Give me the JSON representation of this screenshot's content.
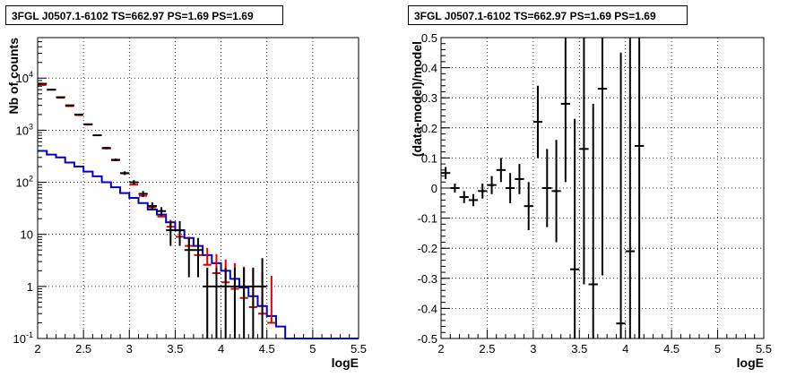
{
  "panels": [
    {
      "title": "3FGL J0507.1-6102 TS=662.97 PS=1.69 PS=1.69"
    },
    {
      "title": "3FGL J0507.1-6102 TS=662.97 PS=1.69 PS=1.69"
    }
  ],
  "colors": {
    "data": "#000000",
    "model_points": "#e00000",
    "model_line": "#0000cc",
    "grid": "#000000"
  },
  "chart_data": [
    {
      "type": "line",
      "title": "3FGL J0507.1-6102 TS=662.97 PS=1.69 PS=1.69",
      "xlabel": "logE",
      "ylabel": "Nb of counts",
      "xlim": [
        2,
        5.5
      ],
      "ylim": [
        0.1,
        60000
      ],
      "yscale": "log",
      "grid": true,
      "x_ticks": [
        "2",
        "2.5",
        "3",
        "3.5",
        "4",
        "4.5",
        "5",
        "5.5"
      ],
      "y_ticks": [
        "10^-1",
        "1",
        "10",
        "10^2",
        "10^3",
        "10^4"
      ],
      "bin_width": 0.1,
      "series": [
        {
          "kind": "data",
          "x": [
            2.05,
            2.15,
            2.25,
            2.35,
            2.45,
            2.55,
            2.65,
            2.75,
            2.85,
            2.95,
            3.05,
            3.15,
            3.25,
            3.35,
            3.45,
            3.55,
            3.65,
            3.75,
            3.85,
            3.95,
            4.05,
            4.15,
            4.25,
            4.35,
            4.45
          ],
          "y": [
            7800,
            6000,
            4300,
            3000,
            2000,
            1300,
            800,
            450,
            270,
            150,
            100,
            60,
            35,
            28,
            12,
            12,
            5,
            5,
            1,
            1,
            1,
            1,
            1,
            1,
            1
          ],
          "yerr_low": [
            100,
            80,
            70,
            60,
            45,
            36,
            28,
            21,
            16,
            12,
            10,
            8,
            6,
            5.3,
            6,
            6,
            3.5,
            3.5,
            0.97,
            0.97,
            0.97,
            0.97,
            0.97,
            0.97,
            0.97
          ],
          "yerr_high": [
            100,
            80,
            70,
            60,
            45,
            36,
            28,
            21,
            16,
            12,
            10,
            8,
            6,
            5.3,
            6,
            6,
            3.5,
            3.5,
            1.3,
            1.3,
            1.3,
            1.3,
            1.3,
            1.3,
            2.5
          ]
        },
        {
          "kind": "model",
          "x": [
            2.05,
            2.15,
            2.25,
            2.35,
            2.45,
            2.55,
            2.65,
            2.75,
            2.85,
            2.95,
            3.05,
            3.15,
            3.25,
            3.35,
            3.45,
            3.55,
            3.65,
            3.75,
            3.85,
            3.95,
            4.05,
            4.15,
            4.25,
            4.35,
            4.45,
            4.55
          ],
          "y": [
            7400,
            6000,
            4200,
            2900,
            1950,
            1280,
            800,
            460,
            265,
            148,
            90,
            55,
            33,
            22,
            14,
            9,
            6,
            4,
            2.6,
            1.8,
            1.2,
            0.9,
            0.6,
            0.4,
            0.3,
            0.2
          ],
          "err_high": [
            7500,
            6050,
            4250,
            2950,
            1980,
            1300,
            820,
            470,
            275,
            152,
            95,
            60,
            38,
            26,
            19,
            13,
            9,
            7,
            5.5,
            4.2,
            3.3,
            2.8,
            2.4,
            2.1,
            1.9,
            1.6
          ]
        },
        {
          "kind": "background",
          "bin_edges": [
            2,
            2.1,
            2.2,
            2.3,
            2.4,
            2.5,
            2.6,
            2.7,
            2.8,
            2.9,
            3.0,
            3.1,
            3.2,
            3.3,
            3.4,
            3.5,
            3.6,
            3.7,
            3.8,
            3.9,
            4.0,
            4.1,
            4.2,
            4.3,
            4.4,
            4.5,
            4.6,
            4.7,
            5.5
          ],
          "y": [
            400,
            340,
            300,
            240,
            200,
            160,
            130,
            100,
            80,
            62,
            50,
            40,
            30,
            24,
            17,
            12,
            8.5,
            6,
            4,
            2.8,
            2,
            1.4,
            0.95,
            0.65,
            0.42,
            0.27,
            0.17,
            0.1
          ]
        }
      ]
    },
    {
      "type": "scatter",
      "title": "3FGL J0507.1-6102 TS=662.97 PS=1.69 PS=1.69",
      "xlabel": "logE",
      "ylabel": "(data-model)/model",
      "xlim": [
        2,
        5.5
      ],
      "ylim": [
        -0.5,
        0.5
      ],
      "grid": true,
      "x_ticks": [
        "2",
        "2.5",
        "3",
        "3.5",
        "4",
        "4.5",
        "5",
        "5.5"
      ],
      "y_ticks": [
        "-0.5",
        "-0.4",
        "-0.3",
        "-0.2",
        "-0.1",
        "0",
        "0.1",
        "0.2",
        "0.3",
        "0.4",
        "0.5"
      ],
      "bin_width": 0.1,
      "series": [
        {
          "kind": "residuals",
          "x": [
            2.05,
            2.15,
            2.25,
            2.35,
            2.45,
            2.55,
            2.65,
            2.75,
            2.85,
            2.95,
            3.05,
            3.15,
            3.25,
            3.35,
            3.45,
            3.55,
            3.65,
            3.75,
            3.95,
            4.05,
            4.15
          ],
          "y": [
            0.05,
            0.0,
            -0.03,
            -0.04,
            -0.01,
            0.01,
            0.06,
            0.0,
            0.03,
            -0.06,
            0.22,
            0.0,
            -0.01,
            0.28,
            -0.27,
            0.13,
            -0.32,
            0.33,
            -0.45,
            -0.21,
            0.14
          ],
          "yerr": [
            0.02,
            0.015,
            0.02,
            0.02,
            0.025,
            0.03,
            0.04,
            0.05,
            0.05,
            0.08,
            0.12,
            0.13,
            0.17,
            0.26,
            0.5,
            0.45,
            0.6,
            0.62,
            0.9,
            0.9,
            0.9
          ]
        }
      ]
    }
  ]
}
